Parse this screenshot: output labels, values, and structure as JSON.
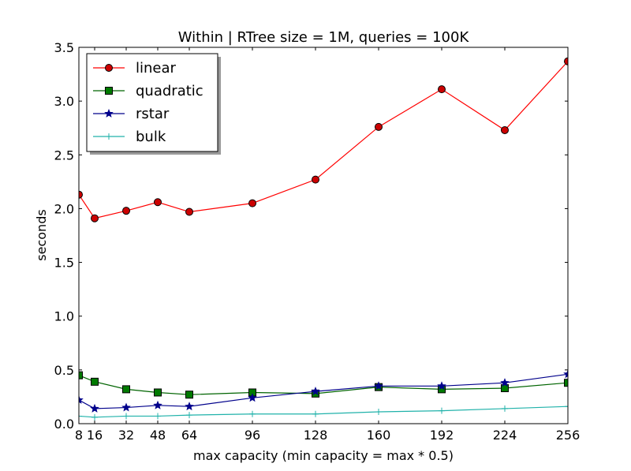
{
  "chart_data": {
    "type": "line",
    "title": "Within | RTree size = 1M, queries = 100K",
    "xlabel": "max capacity (min capacity = max * 0.5)",
    "ylabel": "seconds",
    "xlim": [
      8,
      256
    ],
    "ylim": [
      0.0,
      3.5
    ],
    "xticks": [
      8,
      16,
      32,
      48,
      64,
      96,
      128,
      160,
      192,
      224,
      256
    ],
    "yticks": [
      0.0,
      0.5,
      1.0,
      1.5,
      2.0,
      2.5,
      3.0,
      3.5
    ],
    "ytick_labels": [
      "0.0",
      "0.5",
      "1.0",
      "1.5",
      "2.0",
      "2.5",
      "3.0",
      "3.5"
    ],
    "grid": false,
    "legend_position": "top-left",
    "x": [
      8,
      16,
      32,
      48,
      64,
      96,
      128,
      160,
      192,
      224,
      256
    ],
    "series": [
      {
        "name": "linear",
        "color": "#ff0000",
        "marker": "circle",
        "marker_fill": "#cc0000",
        "values": [
          2.13,
          1.91,
          1.98,
          2.06,
          1.97,
          2.05,
          2.27,
          2.76,
          3.11,
          2.73,
          3.37
        ]
      },
      {
        "name": "quadratic",
        "color": "#006400",
        "marker": "square",
        "marker_fill": "#007a00",
        "values": [
          0.45,
          0.39,
          0.32,
          0.29,
          0.27,
          0.29,
          0.28,
          0.34,
          0.32,
          0.33,
          0.38
        ]
      },
      {
        "name": "rstar",
        "color": "#00008b",
        "marker": "star",
        "marker_fill": "#00008b",
        "values": [
          0.22,
          0.14,
          0.15,
          0.17,
          0.16,
          0.24,
          0.3,
          0.35,
          0.35,
          0.38,
          0.46
        ]
      },
      {
        "name": "bulk",
        "color": "#20b2aa",
        "marker": "plus",
        "marker_fill": "#20b2aa",
        "values": [
          0.07,
          0.06,
          0.07,
          0.07,
          0.08,
          0.09,
          0.09,
          0.11,
          0.12,
          0.14,
          0.16
        ]
      }
    ]
  }
}
